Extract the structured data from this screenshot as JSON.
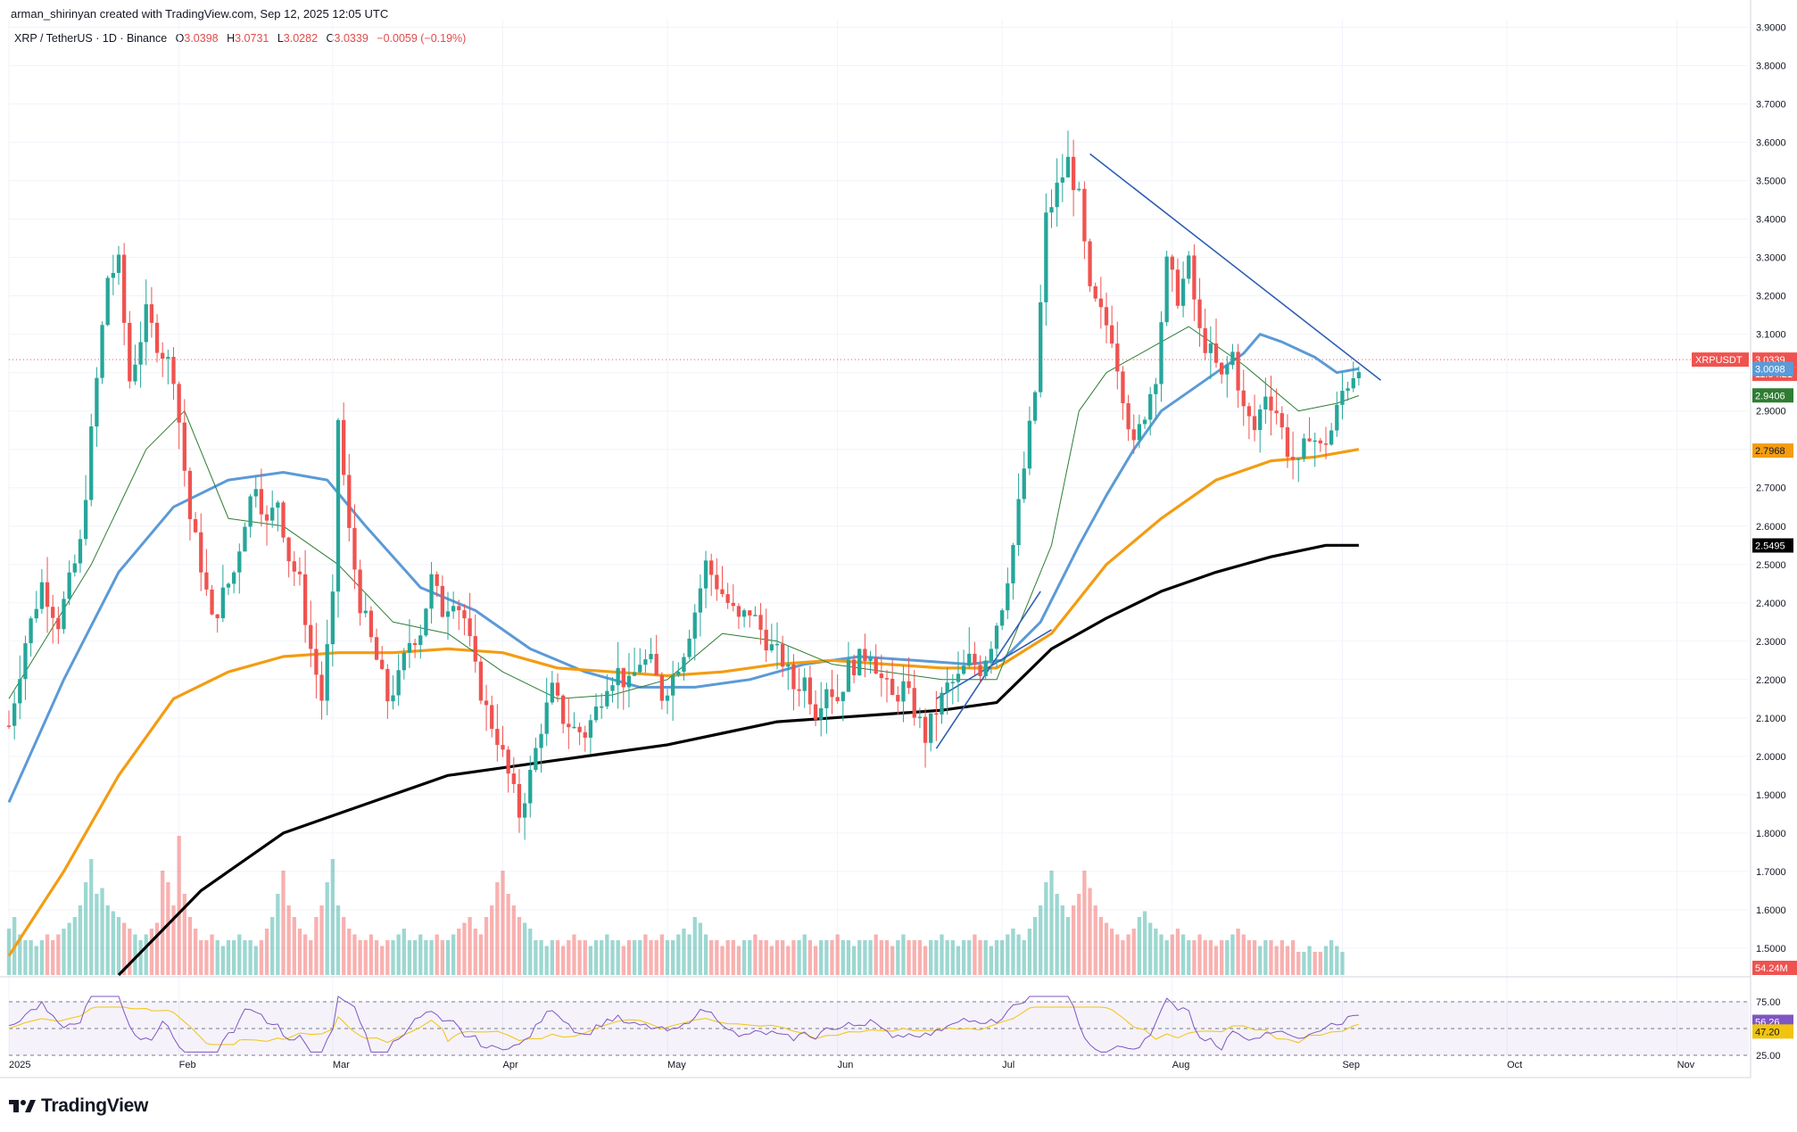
{
  "header": {
    "credit": "arman_shirinyan created with TradingView.com, Sep 12, 2025 12:05 UTC",
    "symbol": "XRP / TetherUS · 1D · Binance",
    "ohlc": {
      "o_label": "O",
      "o_value": "3.0398",
      "h_label": "H",
      "h_value": "3.0731",
      "l_label": "L",
      "l_value": "3.0282",
      "c_label": "C",
      "c_value": "3.0339",
      "change": "−0.0059 (−0.19%)"
    }
  },
  "footer": {
    "brand": "TradingView"
  },
  "colors": {
    "up": "#26a69a",
    "down": "#ef5350",
    "ma_fast": "#5b9ad6",
    "ma_mid": "#f39c12",
    "ma_slow": "#000000",
    "ma_thin": "#2e7d32",
    "rsi": "#7e57c2",
    "rsi_ma": "#f1c40f",
    "trendline": "#2f5fb3"
  },
  "chart_data": [
    {
      "type": "candlestick",
      "title": "XRP / TetherUS · 1D · Binance",
      "ylim": [
        1.43,
        3.92
      ],
      "y_ticks": [
        "3.9000",
        "3.8000",
        "3.7000",
        "3.6000",
        "3.5000",
        "3.4000",
        "3.3000",
        "3.2000",
        "3.1000",
        "3.0000",
        "2.9000",
        "2.8000",
        "2.7000",
        "2.6000",
        "2.5000",
        "2.4000",
        "2.3000",
        "2.2000",
        "2.1000",
        "2.0000",
        "1.9000",
        "1.8000",
        "1.7000",
        "1.6000",
        "1.5000"
      ],
      "x_ticks": [
        {
          "label": "2025",
          "day": 0
        },
        {
          "label": "Feb",
          "day": 31
        },
        {
          "label": "Mar",
          "day": 59
        },
        {
          "label": "Apr",
          "day": 90
        },
        {
          "label": "May",
          "day": 120
        },
        {
          "label": "Jun",
          "day": 151
        },
        {
          "label": "Jul",
          "day": 181
        },
        {
          "label": "Aug",
          "day": 212
        },
        {
          "label": "Sep",
          "day": 243
        },
        {
          "label": "Oct",
          "day": 273
        },
        {
          "label": "Nov",
          "day": 304
        }
      ],
      "price_path_close": [
        [
          0,
          2.08
        ],
        [
          3,
          2.3
        ],
        [
          6,
          2.45
        ],
        [
          9,
          2.35
        ],
        [
          13,
          2.55
        ],
        [
          16,
          2.98
        ],
        [
          18,
          3.25
        ],
        [
          20,
          3.28
        ],
        [
          22,
          2.98
        ],
        [
          25,
          3.15
        ],
        [
          27,
          3.08
        ],
        [
          30,
          3.0
        ],
        [
          33,
          2.62
        ],
        [
          35,
          2.5
        ],
        [
          37,
          2.35
        ],
        [
          39,
          2.42
        ],
        [
          41,
          2.48
        ],
        [
          43,
          2.62
        ],
        [
          45,
          2.72
        ],
        [
          47,
          2.6
        ],
        [
          49,
          2.67
        ],
        [
          51,
          2.52
        ],
        [
          53,
          2.45
        ],
        [
          55,
          2.28
        ],
        [
          57,
          2.15
        ],
        [
          59,
          2.4
        ],
        [
          60,
          2.88
        ],
        [
          62,
          2.58
        ],
        [
          64,
          2.4
        ],
        [
          67,
          2.25
        ],
        [
          69,
          2.15
        ],
        [
          71,
          2.2
        ],
        [
          73,
          2.3
        ],
        [
          75,
          2.33
        ],
        [
          77,
          2.46
        ],
        [
          79,
          2.38
        ],
        [
          81,
          2.42
        ],
        [
          83,
          2.36
        ],
        [
          85,
          2.22
        ],
        [
          87,
          2.12
        ],
        [
          89,
          2.05
        ],
        [
          91,
          1.95
        ],
        [
          93,
          1.85
        ],
        [
          95,
          1.95
        ],
        [
          97,
          2.08
        ],
        [
          99,
          2.17
        ],
        [
          101,
          2.1
        ],
        [
          103,
          2.07
        ],
        [
          105,
          2.06
        ],
        [
          107,
          2.12
        ],
        [
          109,
          2.2
        ],
        [
          111,
          2.22
        ],
        [
          113,
          2.18
        ],
        [
          115,
          2.25
        ],
        [
          117,
          2.24
        ],
        [
          119,
          2.16
        ],
        [
          121,
          2.21
        ],
        [
          123,
          2.28
        ],
        [
          125,
          2.38
        ],
        [
          127,
          2.5
        ],
        [
          129,
          2.45
        ],
        [
          131,
          2.4
        ],
        [
          133,
          2.35
        ],
        [
          135,
          2.38
        ],
        [
          137,
          2.33
        ],
        [
          139,
          2.28
        ],
        [
          141,
          2.25
        ],
        [
          143,
          2.18
        ],
        [
          145,
          2.2
        ],
        [
          147,
          2.12
        ],
        [
          149,
          2.19
        ],
        [
          151,
          2.15
        ],
        [
          153,
          2.23
        ],
        [
          155,
          2.25
        ],
        [
          157,
          2.28
        ],
        [
          159,
          2.2
        ],
        [
          161,
          2.15
        ],
        [
          163,
          2.18
        ],
        [
          165,
          2.12
        ],
        [
          167,
          2.05
        ],
        [
          169,
          2.12
        ],
        [
          171,
          2.18
        ],
        [
          173,
          2.2
        ],
        [
          175,
          2.25
        ],
        [
          177,
          2.23
        ],
        [
          179,
          2.3
        ],
        [
          181,
          2.4
        ],
        [
          183,
          2.55
        ],
        [
          185,
          2.75
        ],
        [
          187,
          2.95
        ],
        [
          189,
          3.4
        ],
        [
          191,
          3.48
        ],
        [
          193,
          3.55
        ],
        [
          195,
          3.45
        ],
        [
          197,
          3.2
        ],
        [
          199,
          3.15
        ],
        [
          201,
          3.1
        ],
        [
          203,
          2.95
        ],
        [
          205,
          2.8
        ],
        [
          207,
          2.9
        ],
        [
          209,
          3.0
        ],
        [
          211,
          3.28
        ],
        [
          213,
          3.2
        ],
        [
          215,
          3.28
        ],
        [
          217,
          3.1
        ],
        [
          219,
          3.05
        ],
        [
          221,
          2.98
        ],
        [
          223,
          3.05
        ],
        [
          225,
          2.9
        ],
        [
          227,
          2.85
        ],
        [
          229,
          2.95
        ],
        [
          231,
          2.9
        ],
        [
          233,
          2.8
        ],
        [
          235,
          2.75
        ],
        [
          237,
          2.85
        ],
        [
          239,
          2.8
        ],
        [
          241,
          2.85
        ],
        [
          243,
          2.95
        ],
        [
          245,
          3.0
        ],
        [
          246,
          3.03
        ]
      ]
    },
    {
      "type": "line",
      "series": [
        {
          "name": "",
          "role": "ma_fast",
          "values": [
            [
              0,
              1.88
            ],
            [
              10,
              2.2
            ],
            [
              20,
              2.48
            ],
            [
              30,
              2.65
            ],
            [
              40,
              2.72
            ],
            [
              50,
              2.74
            ],
            [
              58,
              2.72
            ],
            [
              65,
              2.6
            ],
            [
              75,
              2.44
            ],
            [
              85,
              2.38
            ],
            [
              95,
              2.28
            ],
            [
              105,
              2.22
            ],
            [
              115,
              2.18
            ],
            [
              125,
              2.18
            ],
            [
              135,
              2.2
            ],
            [
              145,
              2.24
            ],
            [
              155,
              2.26
            ],
            [
              165,
              2.25
            ],
            [
              175,
              2.24
            ],
            [
              181,
              2.25
            ],
            [
              188,
              2.35
            ],
            [
              195,
              2.55
            ],
            [
              200,
              2.68
            ],
            [
              205,
              2.8
            ],
            [
              210,
              2.9
            ],
            [
              215,
              2.95
            ],
            [
              220,
              3.0
            ],
            [
              225,
              3.05
            ],
            [
              228,
              3.1
            ],
            [
              232,
              3.08
            ],
            [
              238,
              3.04
            ],
            [
              242,
              3.0
            ],
            [
              246,
              3.01
            ]
          ]
        },
        {
          "name": "",
          "role": "ma_mid",
          "values": [
            [
              0,
              1.48
            ],
            [
              10,
              1.7
            ],
            [
              20,
              1.95
            ],
            [
              30,
              2.15
            ],
            [
              40,
              2.22
            ],
            [
              50,
              2.26
            ],
            [
              60,
              2.27
            ],
            [
              70,
              2.27
            ],
            [
              80,
              2.28
            ],
            [
              90,
              2.27
            ],
            [
              100,
              2.23
            ],
            [
              110,
              2.22
            ],
            [
              120,
              2.21
            ],
            [
              130,
              2.22
            ],
            [
              140,
              2.24
            ],
            [
              150,
              2.25
            ],
            [
              160,
              2.24
            ],
            [
              170,
              2.23
            ],
            [
              180,
              2.23
            ],
            [
              190,
              2.32
            ],
            [
              200,
              2.5
            ],
            [
              210,
              2.62
            ],
            [
              220,
              2.72
            ],
            [
              230,
              2.77
            ],
            [
              238,
              2.78
            ],
            [
              246,
              2.8
            ]
          ]
        },
        {
          "name": "",
          "role": "ma_slow",
          "values": [
            [
              20,
              1.43
            ],
            [
              35,
              1.65
            ],
            [
              50,
              1.8
            ],
            [
              60,
              1.85
            ],
            [
              70,
              1.9
            ],
            [
              80,
              1.95
            ],
            [
              90,
              1.97
            ],
            [
              100,
              1.99
            ],
            [
              110,
              2.01
            ],
            [
              120,
              2.03
            ],
            [
              130,
              2.06
            ],
            [
              140,
              2.09
            ],
            [
              150,
              2.1
            ],
            [
              160,
              2.11
            ],
            [
              170,
              2.12
            ],
            [
              180,
              2.14
            ],
            [
              190,
              2.28
            ],
            [
              200,
              2.36
            ],
            [
              210,
              2.43
            ],
            [
              220,
              2.48
            ],
            [
              230,
              2.52
            ],
            [
              240,
              2.55
            ],
            [
              246,
              2.55
            ]
          ]
        },
        {
          "name": "",
          "role": "ma_thin",
          "values": [
            [
              0,
              2.15
            ],
            [
              15,
              2.5
            ],
            [
              25,
              2.8
            ],
            [
              32,
              2.9
            ],
            [
              40,
              2.62
            ],
            [
              50,
              2.6
            ],
            [
              60,
              2.5
            ],
            [
              70,
              2.35
            ],
            [
              80,
              2.32
            ],
            [
              90,
              2.22
            ],
            [
              100,
              2.15
            ],
            [
              110,
              2.16
            ],
            [
              120,
              2.2
            ],
            [
              130,
              2.32
            ],
            [
              140,
              2.3
            ],
            [
              150,
              2.24
            ],
            [
              160,
              2.22
            ],
            [
              170,
              2.2
            ],
            [
              180,
              2.2
            ],
            [
              190,
              2.55
            ],
            [
              195,
              2.9
            ],
            [
              200,
              3.0
            ],
            [
              210,
              3.08
            ],
            [
              215,
              3.12
            ],
            [
              225,
              3.02
            ],
            [
              235,
              2.9
            ],
            [
              242,
              2.92
            ],
            [
              246,
              2.94
            ]
          ]
        },
        {
          "name": "",
          "role": "trendline",
          "values": [
            [
              197,
              3.57
            ],
            [
              250,
              2.98
            ]
          ]
        },
        {
          "name": "",
          "role": "channel_low",
          "values": [
            [
              169,
              2.02
            ],
            [
              188,
              2.43
            ]
          ]
        },
        {
          "name": "",
          "role": "channel_high",
          "values": [
            [
              169,
              2.15
            ],
            [
              190,
              2.33
            ]
          ]
        }
      ]
    }
  ],
  "volume": {
    "max_label": "54.24M",
    "bars": [
      0.4,
      0.5,
      0.35,
      0.3,
      0.3,
      0.25,
      0.3,
      0.35,
      0.3,
      0.35,
      0.4,
      0.45,
      0.5,
      0.6,
      0.8,
      1.0,
      0.7,
      0.75,
      0.6,
      0.55,
      0.5,
      0.45,
      0.4,
      0.35,
      0.3,
      0.35,
      0.4,
      0.45,
      0.9,
      0.8,
      0.6,
      1.2,
      0.7,
      0.5,
      0.4,
      0.3,
      0.3,
      0.35,
      0.3,
      0.25,
      0.3,
      0.3,
      0.35,
      0.3,
      0.3,
      0.25,
      0.3,
      0.4,
      0.5,
      0.7,
      0.9,
      0.6,
      0.5,
      0.4,
      0.35,
      0.3,
      0.5,
      0.6,
      0.8,
      1.0,
      0.6,
      0.5,
      0.4,
      0.35,
      0.3,
      0.3,
      0.35,
      0.3,
      0.25,
      0.3,
      0.3,
      0.35,
      0.4,
      0.3,
      0.3,
      0.35,
      0.3,
      0.3,
      0.35,
      0.3,
      0.3,
      0.35,
      0.4,
      0.45,
      0.5,
      0.4,
      0.35,
      0.5,
      0.6,
      0.8,
      0.9,
      0.7,
      0.6,
      0.5,
      0.45,
      0.4,
      0.3,
      0.3,
      0.25,
      0.3,
      0.3,
      0.25,
      0.3,
      0.35,
      0.3,
      0.3,
      0.25,
      0.3,
      0.3,
      0.35,
      0.3,
      0.3,
      0.25,
      0.3,
      0.3,
      0.3,
      0.35,
      0.3,
      0.3,
      0.35,
      0.3,
      0.3,
      0.35,
      0.4,
      0.35,
      0.5,
      0.45,
      0.35,
      0.3,
      0.3,
      0.25,
      0.3,
      0.3,
      0.25,
      0.3,
      0.3,
      0.35,
      0.3,
      0.3,
      0.25,
      0.3,
      0.3,
      0.25,
      0.3,
      0.3,
      0.35,
      0.3,
      0.25,
      0.3,
      0.3,
      0.3,
      0.35,
      0.3,
      0.3,
      0.25,
      0.3,
      0.3,
      0.3,
      0.35,
      0.3,
      0.3,
      0.25,
      0.3,
      0.35,
      0.3,
      0.3,
      0.3,
      0.25,
      0.3,
      0.3,
      0.35,
      0.3,
      0.3,
      0.25,
      0.3,
      0.3,
      0.35,
      0.3,
      0.3,
      0.25,
      0.3,
      0.3,
      0.35,
      0.4,
      0.35,
      0.3,
      0.4,
      0.5,
      0.6,
      0.8,
      0.9,
      0.7,
      0.6,
      0.5,
      0.6,
      0.7,
      0.9,
      0.75,
      0.6,
      0.5,
      0.45,
      0.4,
      0.35,
      0.3,
      0.35,
      0.4,
      0.5,
      0.55,
      0.45,
      0.4,
      0.35,
      0.3,
      0.35,
      0.4,
      0.35,
      0.3,
      0.3,
      0.35,
      0.3,
      0.3,
      0.25,
      0.3,
      0.3,
      0.35,
      0.4,
      0.35,
      0.3,
      0.3,
      0.25,
      0.3,
      0.3,
      0.25,
      0.3,
      0.25,
      0.3,
      0.2,
      0.2,
      0.25,
      0.2,
      0.2,
      0.25,
      0.3,
      0.25,
      0.2
    ]
  },
  "price_labels": {
    "symbol_badge": "XRPUSDT",
    "current_price": "3.0339",
    "countdown": "11:54:21",
    "ma_fast_value": "3.0098",
    "ma_thin_value": "2.9406",
    "ma_mid_value": "2.7968",
    "ma_slow_value": "2.5495"
  },
  "rsi": {
    "level_high": "75.00",
    "level_low": "25.00",
    "rsi_value": "56.26",
    "rsi_ma_value": "47.20"
  }
}
